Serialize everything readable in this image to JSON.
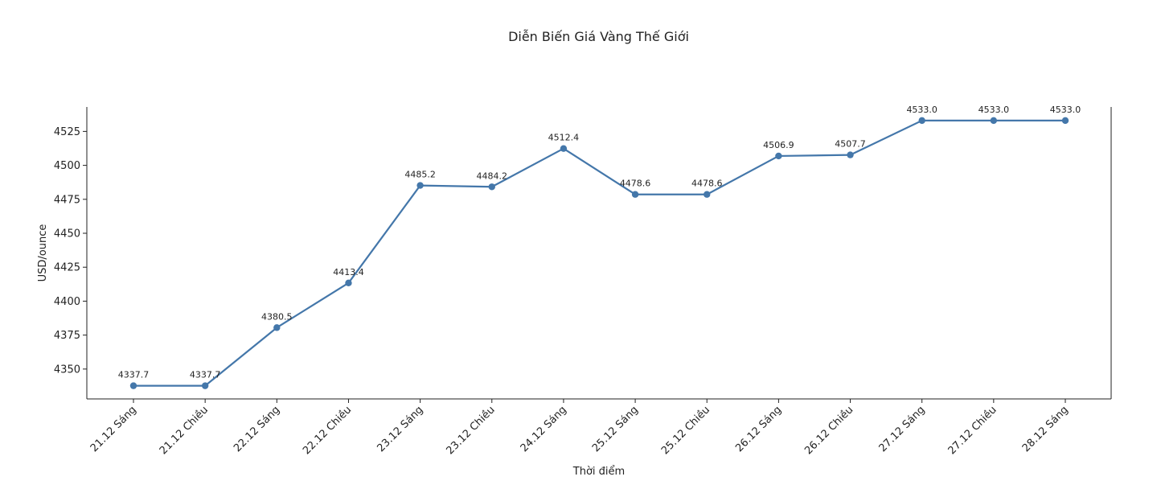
{
  "chart_data": {
    "type": "line",
    "title": "Diễn Biến Giá Vàng Thế Giới",
    "xlabel": "Thời điểm",
    "ylabel": "USD/ounce",
    "categories": [
      "21.12 Sáng",
      "21.12 Chiều",
      "22.12 Sáng",
      "22.12 Chiều",
      "23.12 Sáng",
      "23.12 Chiều",
      "24.12 Sáng",
      "25.12 Sáng",
      "25.12 Chiều",
      "26.12 Sáng",
      "26.12 Chiều",
      "27.12 Sáng",
      "27.12 Chiều",
      "28.12 Sáng"
    ],
    "values": [
      4337.7,
      4337.7,
      4380.5,
      4413.4,
      4485.2,
      4484.2,
      4512.4,
      4478.6,
      4478.6,
      4506.9,
      4507.7,
      4533.0,
      4533.0,
      4533.0
    ],
    "data_labels": [
      "4337.7",
      "4337.7",
      "4380.5",
      "4413.4",
      "4485.2",
      "4484.2",
      "4512.4",
      "4478.6",
      "4478.6",
      "4506.9",
      "4507.7",
      "4533.0",
      "4533.0",
      "4533.0"
    ],
    "yticks": [
      4350,
      4375,
      4400,
      4425,
      4450,
      4475,
      4500,
      4525
    ],
    "ylim": [
      4328,
      4543
    ],
    "grid": false,
    "legend": "none",
    "line_color": "#4477aa"
  }
}
